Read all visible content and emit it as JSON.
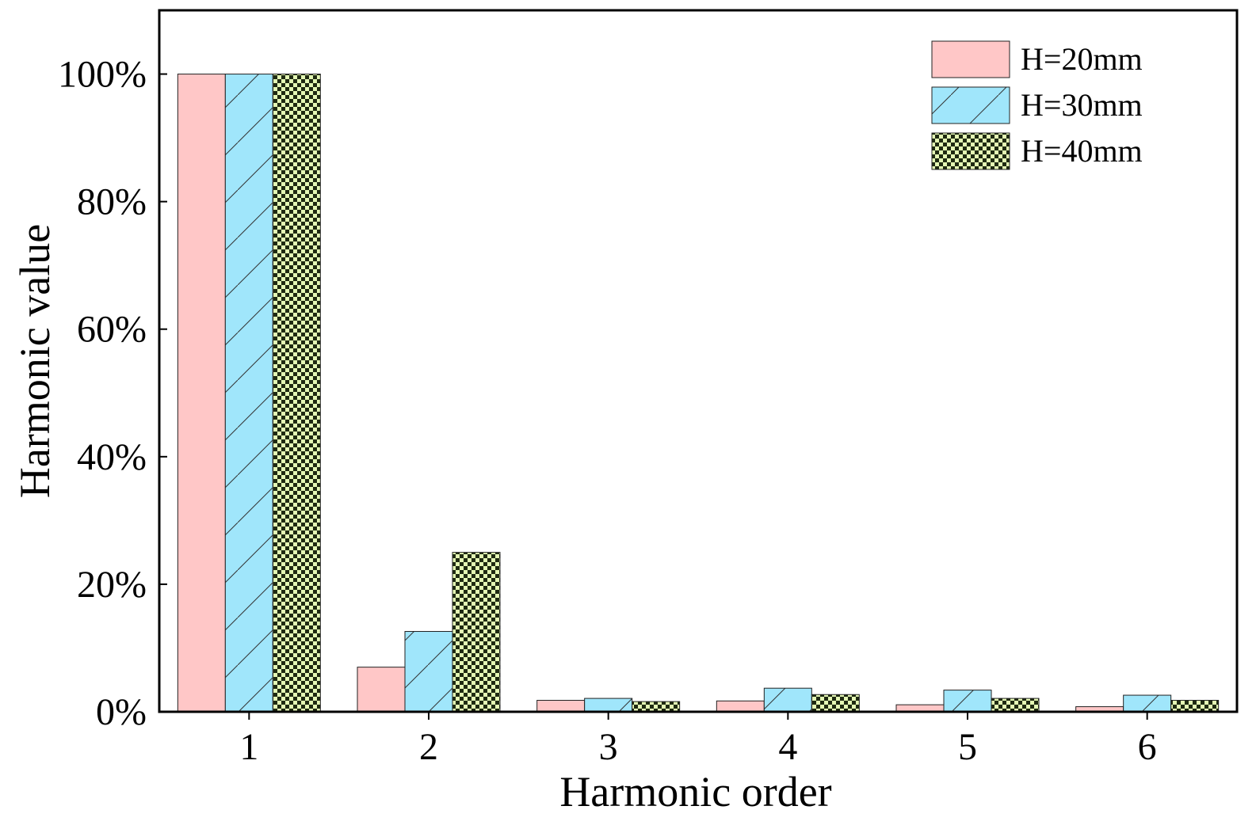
{
  "chart_data": {
    "type": "bar",
    "title": "",
    "xlabel": "Harmonic order",
    "ylabel": "Harmonic value",
    "categories": [
      "1",
      "2",
      "3",
      "4",
      "5",
      "6"
    ],
    "series": [
      {
        "name": "H=20mm",
        "values": [
          100,
          7,
          1.8,
          1.7,
          1.1,
          0.8
        ],
        "color": "#ffc7c7",
        "pattern": "solid"
      },
      {
        "name": "H=30mm",
        "values": [
          100,
          12.6,
          2.1,
          3.7,
          3.4,
          2.6
        ],
        "color": "#a0e6fb",
        "pattern": "diagonal"
      },
      {
        "name": "H=40mm",
        "values": [
          100,
          25,
          1.6,
          2.7,
          2.1,
          1.8
        ],
        "color": "#e4f7b4",
        "pattern": "checker"
      }
    ],
    "ylim": [
      0,
      110
    ],
    "yticks": [
      0,
      20,
      40,
      60,
      80,
      100
    ],
    "ytick_labels": [
      "0%",
      "20%",
      "40%",
      "60%",
      "80%",
      "100%"
    ],
    "grid": false,
    "legend_position": "top-right"
  }
}
